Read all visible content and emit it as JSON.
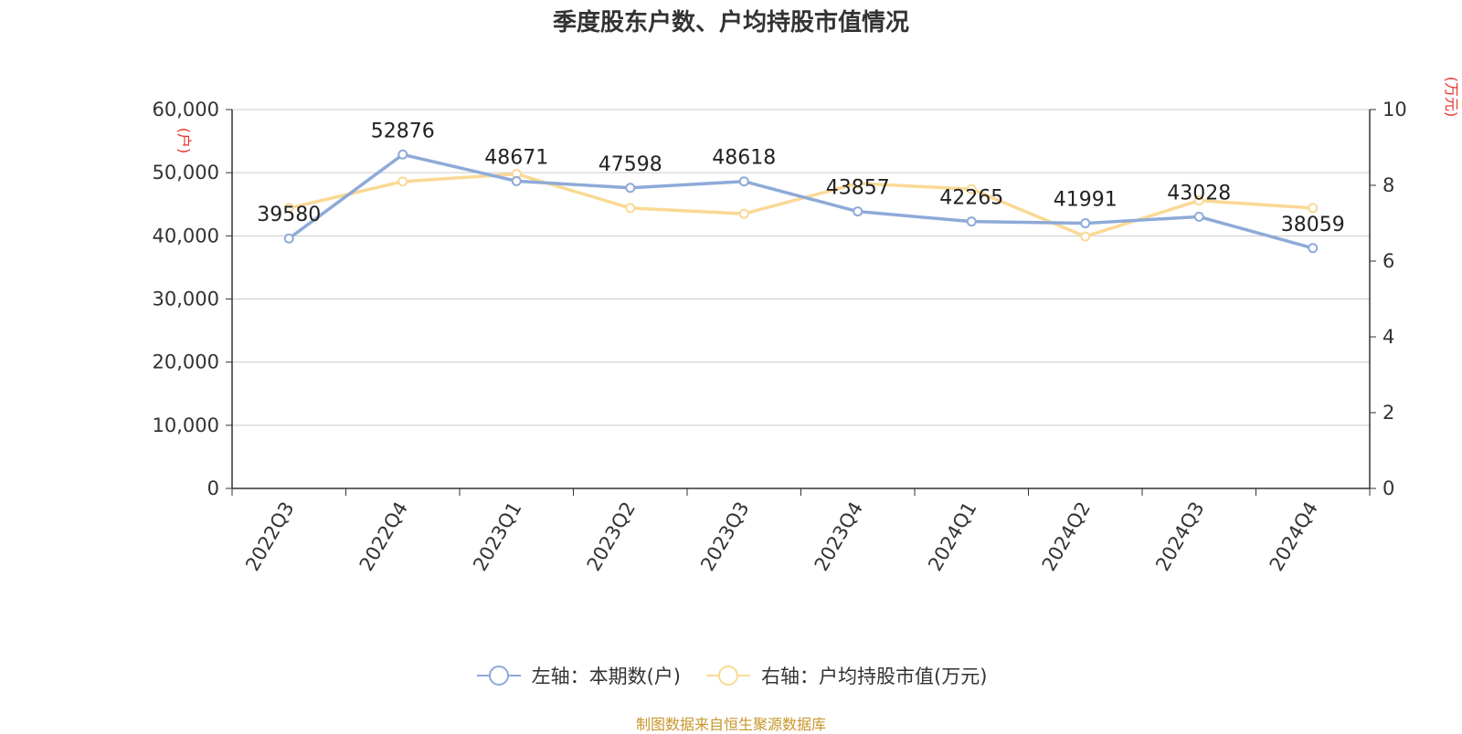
{
  "chart_data": {
    "type": "line",
    "title": "季度股东户数、户均持股市值情况",
    "categories": [
      "2022Q3",
      "2022Q4",
      "2023Q1",
      "2023Q2",
      "2023Q3",
      "2023Q4",
      "2024Q1",
      "2024Q2",
      "2024Q3",
      "2024Q4"
    ],
    "series": [
      {
        "name": "左轴：本期数(户)",
        "axis": "left",
        "color": "#8eaad8",
        "values": [
          39580,
          52876,
          48671,
          47598,
          48618,
          43857,
          42265,
          41991,
          43028,
          38059
        ],
        "labels": [
          "39580",
          "52876",
          "48671",
          "47598",
          "48618",
          "43857",
          "42265",
          "41991",
          "43028",
          "38059"
        ]
      },
      {
        "name": "右轴：户均持股市值(万元)",
        "axis": "right",
        "color": "#fad995",
        "values": [
          7.4,
          8.1,
          8.3,
          7.4,
          7.25,
          8.05,
          7.9,
          6.65,
          7.6,
          7.4
        ]
      }
    ],
    "yaxis_left": {
      "label": "(户)",
      "ylim": [
        0,
        60000
      ],
      "ticks": [
        0,
        10000,
        20000,
        30000,
        40000,
        50000,
        60000
      ],
      "tick_labels": [
        "0",
        "10,000",
        "20,000",
        "30,000",
        "40,000",
        "50,000",
        "60,000"
      ]
    },
    "yaxis_right": {
      "label": "(万元)",
      "ylim": [
        0,
        10
      ],
      "ticks": [
        0,
        2,
        4,
        6,
        8,
        10
      ],
      "tick_labels": [
        "0",
        "2",
        "4",
        "6",
        "8",
        "10"
      ]
    },
    "grid": true,
    "legend_position": "bottom",
    "source_note": "制图数据来自恒生聚源数据库",
    "axis_label_color": "#e8312a"
  }
}
